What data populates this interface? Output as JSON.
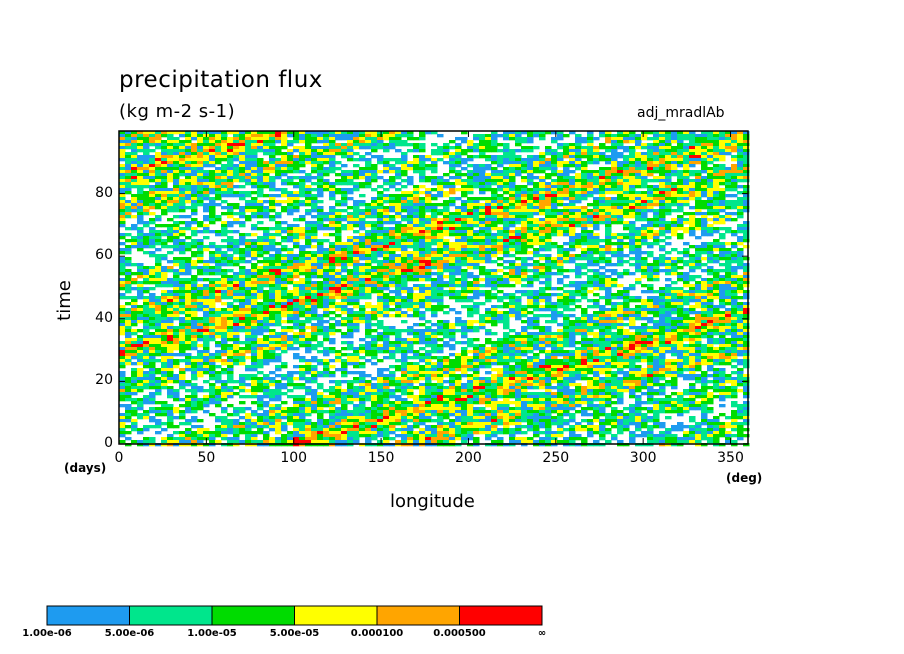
{
  "chart_data": {
    "type": "heatmap",
    "title": "precipitation flux",
    "units": "(kg m-2 s-1)",
    "experiment": "adj_mradlAb",
    "xlabel": "longitude",
    "ylabel": "time",
    "x_unit": "(deg)",
    "y_unit": "(days)",
    "xlim": [
      0,
      360
    ],
    "ylim": [
      0,
      100
    ],
    "x_ticks": [
      0,
      50,
      100,
      150,
      200,
      250,
      300,
      350
    ],
    "y_ticks": [
      0,
      20,
      40,
      60,
      80
    ],
    "x_tick_labels": [
      "0",
      "50",
      "100",
      "150",
      "200",
      "250",
      "300",
      "350"
    ],
    "y_tick_labels": [
      "0",
      "20",
      "40",
      "60",
      "80"
    ],
    "levels": [
      "1.00e-06",
      "5.00e-06",
      "1.00e-05",
      "5.00e-05",
      "0.000100",
      "0.000500",
      "∞"
    ],
    "colors": [
      "#1e9bf0",
      "#00e68c",
      "#00dc00",
      "#ffff00",
      "#ffa500",
      "#ff0000"
    ]
  }
}
